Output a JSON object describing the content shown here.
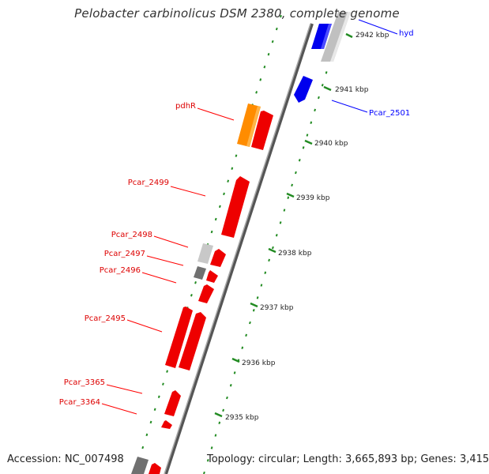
{
  "title": "Pelobacter carbinolicus DSM 2380, complete genome",
  "footer": {
    "accession_label": "Accession:",
    "accession": "NC_007498",
    "topology_label": "Topology:",
    "topology": "circular",
    "length_label": "Length:",
    "length": "3,665,893 bp",
    "genes_label": "Genes:",
    "genes": "3,415"
  },
  "colors": {
    "forward_gene": "#ff0000",
    "reverse_gene": "#0000ff",
    "other_gene": "#ff8c00",
    "hypothetical_gene": "#c8c8c8",
    "rna_gene": "#707070",
    "tick": "#228b22",
    "backbone": "#808080"
  },
  "scale_ticks": [
    {
      "label": "2942 kbp"
    },
    {
      "label": "2941 kbp"
    },
    {
      "label": "2940 kbp"
    },
    {
      "label": "2939 kbp"
    },
    {
      "label": "2938 kbp"
    },
    {
      "label": "2937 kbp"
    },
    {
      "label": "2936 kbp"
    },
    {
      "label": "2935 kbp"
    }
  ],
  "gene_labels": [
    {
      "name": "hyd",
      "strand": "reverse"
    },
    {
      "name": "Pcar_2501",
      "strand": "reverse"
    },
    {
      "name": "pdhR",
      "strand": "forward"
    },
    {
      "name": "Pcar_2499",
      "strand": "forward"
    },
    {
      "name": "Pcar_2498",
      "strand": "forward"
    },
    {
      "name": "Pcar_2497",
      "strand": "forward"
    },
    {
      "name": "Pcar_2496",
      "strand": "forward"
    },
    {
      "name": "Pcar_2495",
      "strand": "forward"
    },
    {
      "name": "Pcar_3365",
      "strand": "forward"
    },
    {
      "name": "Pcar_3364",
      "strand": "forward"
    }
  ]
}
